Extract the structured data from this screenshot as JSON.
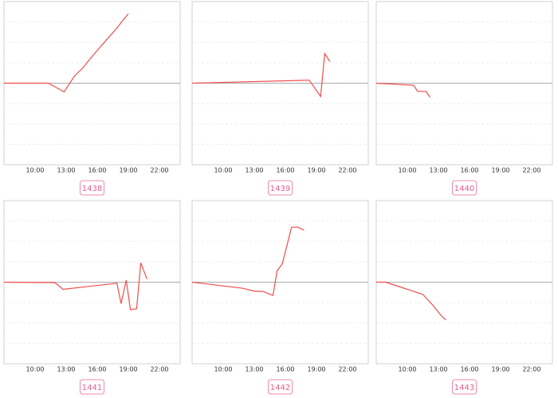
{
  "chart_data": [
    {
      "type": "line",
      "title": "1438",
      "color": "#f04c4c",
      "baseline": 0,
      "x": [
        7,
        11.3,
        12.8,
        13.8,
        14.6,
        15.4,
        16.5,
        17.9,
        18.5,
        19
      ],
      "values": [
        0,
        0,
        -0.43,
        0.35,
        0.74,
        1.25,
        1.9,
        2.7,
        3.1,
        3.4
      ],
      "xlim": [
        7,
        24
      ],
      "xticks": [
        {
          "value": 10,
          "label": "10:00"
        },
        {
          "value": 13,
          "label": "13:00"
        },
        {
          "value": 16,
          "label": "16:00"
        },
        {
          "value": 19,
          "label": "19:00"
        },
        {
          "value": 22,
          "label": "22:00"
        }
      ],
      "ylim": [
        -4,
        4
      ],
      "yticks": [
        -3,
        -2,
        -1,
        0,
        1,
        2,
        3
      ],
      "grid": true
    },
    {
      "type": "line",
      "title": "1439",
      "color": "#f04c4c",
      "baseline": 0,
      "x": [
        7,
        18.3,
        19.4,
        19.8,
        20.3
      ],
      "values": [
        0,
        0.15,
        -0.65,
        1.45,
        1.05
      ],
      "xlim": [
        7,
        24
      ],
      "xticks": [
        {
          "value": 10,
          "label": "10:00"
        },
        {
          "value": 13,
          "label": "13:00"
        },
        {
          "value": 16,
          "label": "16:00"
        },
        {
          "value": 19,
          "label": "19:00"
        },
        {
          "value": 22,
          "label": "22:00"
        }
      ],
      "ylim": [
        -4,
        4
      ],
      "yticks": [
        -3,
        -2,
        -1,
        0,
        1,
        2,
        3
      ],
      "grid": true
    },
    {
      "type": "line",
      "title": "1440",
      "color": "#f04c4c",
      "baseline": 0,
      "x": [
        7,
        10.6,
        11,
        11.8,
        12.2
      ],
      "values": [
        0,
        -0.1,
        -0.4,
        -0.4,
        -0.7
      ],
      "xlim": [
        7,
        24
      ],
      "xticks": [
        {
          "value": 10,
          "label": "10:00"
        },
        {
          "value": 13,
          "label": "13:00"
        },
        {
          "value": 16,
          "label": "16:00"
        },
        {
          "value": 19,
          "label": "19:00"
        },
        {
          "value": 22,
          "label": "22:00"
        }
      ],
      "ylim": [
        -4,
        4
      ],
      "yticks": [
        -3,
        -2,
        -1,
        0,
        1,
        2,
        3
      ],
      "grid": true
    },
    {
      "type": "line",
      "title": "1441",
      "color": "#f04c4c",
      "baseline": 0,
      "x": [
        7,
        11.9,
        12.7,
        17.9,
        18.3,
        18.8,
        19.2,
        19.8,
        20.2,
        20.8
      ],
      "values": [
        0,
        -0.02,
        -0.35,
        -0.05,
        -1.05,
        0.1,
        -1.35,
        -1.3,
        0.95,
        0.15
      ],
      "xlim": [
        7,
        24
      ],
      "xticks": [
        {
          "value": 10,
          "label": "10:00"
        },
        {
          "value": 13,
          "label": "13:00"
        },
        {
          "value": 16,
          "label": "16:00"
        },
        {
          "value": 19,
          "label": "19:00"
        },
        {
          "value": 22,
          "label": "22:00"
        }
      ],
      "ylim": [
        -4,
        4
      ],
      "yticks": [
        -3,
        -2,
        -1,
        0,
        1,
        2,
        3
      ],
      "grid": true
    },
    {
      "type": "line",
      "title": "1442",
      "color": "#f04c4c",
      "baseline": 0,
      "x": [
        7,
        11.9,
        13.1,
        13.8,
        14.8,
        15.2,
        15.7,
        16.6,
        17.2,
        17.8
      ],
      "values": [
        0,
        -0.3,
        -0.45,
        -0.45,
        -0.65,
        0.55,
        0.9,
        2.7,
        2.7,
        2.55
      ],
      "xlim": [
        7,
        24
      ],
      "xticks": [
        {
          "value": 10,
          "label": "10:00"
        },
        {
          "value": 13,
          "label": "13:00"
        },
        {
          "value": 16,
          "label": "16:00"
        },
        {
          "value": 19,
          "label": "19:00"
        },
        {
          "value": 22,
          "label": "22:00"
        }
      ],
      "ylim": [
        -4,
        4
      ],
      "yticks": [
        -3,
        -2,
        -1,
        0,
        1,
        2,
        3
      ],
      "grid": true
    },
    {
      "type": "line",
      "title": "1443",
      "color": "#f04c4c",
      "baseline": 0,
      "x": [
        7,
        7.9,
        11.2,
        11.5,
        12.5,
        13.2,
        13.7
      ],
      "values": [
        0,
        0,
        -0.55,
        -0.6,
        -1.15,
        -1.6,
        -1.85
      ],
      "xlim": [
        7,
        24
      ],
      "xticks": [
        {
          "value": 10,
          "label": "10:00"
        },
        {
          "value": 13,
          "label": "13:00"
        },
        {
          "value": 16,
          "label": "16:00"
        },
        {
          "value": 19,
          "label": "19:00"
        },
        {
          "value": 22,
          "label": "22:00"
        }
      ],
      "ylim": [
        -4,
        4
      ],
      "yticks": [
        -3,
        -2,
        -1,
        0,
        1,
        2,
        3
      ],
      "grid": true
    }
  ]
}
